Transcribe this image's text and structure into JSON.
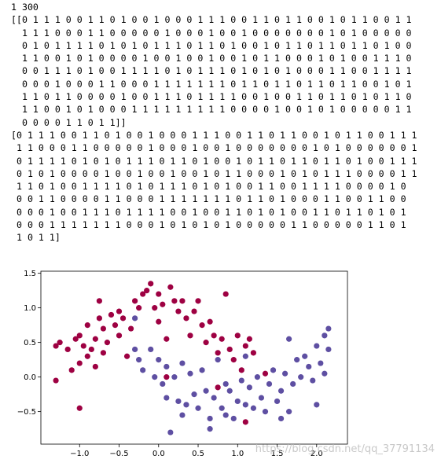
{
  "output_lines": [
    "1 300",
    "[[0 1 1 1 0 0 1 1 0 1 0 0 1 0 0 0 1 1 1 0 0 1 1 0 1 1 0 0 1 0 1 1 0 0 1 1",
    "  1 1 1 0 0 0 1 1 0 0 0 0 0 1 0 0 0 1 0 0 1 0 0 0 0 0 0 0 1 0 1 0 0 0 0 0",
    "  0 1 0 1 1 1 1 0 1 0 1 0 1 1 1 0 1 1 0 1 0 0 1 0 1 1 0 1 1 0 1 1 0 1 0 0",
    "  1 1 0 0 1 0 1 0 0 0 0 1 0 0 1 0 0 1 0 0 1 0 1 1 0 0 0 1 0 1 0 0 1 1 1 0",
    "  0 0 1 1 1 0 1 0 0 1 1 1 1 0 1 0 1 1 1 0 1 0 1 0 1 0 0 0 1 1 0 0 1 1 1 1",
    "  0 0 0 1 0 0 0 1 1 0 0 0 1 1 1 1 1 1 1 0 1 1 0 1 1 0 1 1 0 1 1 0 0 1 0 1",
    "  1 1 0 1 1 0 0 0 0 1 0 0 1 1 1 0 1 1 1 1 0 0 1 0 0 1 1 0 1 1 0 1 0 1 1 0",
    "  1 1 0 0 1 0 1 0 0 0 1 1 1 1 1 1 1 1 1 0 0 0 0 1 0 0 1 0 1 0 0 0 0 0 1 1",
    "  0 0 0 0 1 1 0 1 1]]",
    "[0 1 1 1 0 0 1 1 0 1 0 0 1 0 0 0 1 1 1 0 0 1 1 0 1 1 0 0 1 0 1 1 0 0 1 1 1",
    " 1 1 0 0 0 1 1 0 0 0 0 0 1 0 0 0 1 0 0 1 0 0 0 0 0 0 0 1 0 1 0 0 0 0 0 0 1",
    " 0 1 1 1 1 0 1 0 1 0 1 1 1 0 1 1 0 1 0 0 1 0 1 1 0 1 1 0 1 1 0 1 0 0 1 1 1",
    " 0 1 0 1 0 0 0 0 1 0 0 1 0 0 1 0 0 1 0 1 1 0 0 0 1 0 1 0 1 1 1 0 0 0 0 1 1",
    " 1 1 0 1 0 0 1 1 1 1 0 1 0 1 1 1 0 1 0 1 0 0 1 1 0 0 1 1 1 1 0 0 0 0 1 0",
    " 0 0 1 1 0 0 0 0 1 1 0 0 0 1 1 1 1 1 1 1 0 1 1 0 1 0 0 0 1 1 0 0 1 1 0 0",
    " 0 0 0 1 0 0 1 1 1 0 1 1 1 1 0 0 1 0 0 1 1 0 1 0 1 0 0 1 1 0 1 1 0 1 0 1",
    " 0 0 0 1 1 1 1 1 1 1 0 0 0 1 0 1 0 1 0 1 0 0 0 0 0 1 1 0 0 0 0 0 1 1 0 1",
    " 1 0 1 1]"
  ],
  "chart_data": {
    "type": "scatter",
    "xlim": [
      -1.49,
      2.39
    ],
    "ylim": [
      -0.97,
      1.53
    ],
    "xticks": [
      {
        "value": -1,
        "label": "−1.0"
      },
      {
        "value": -0.5,
        "label": "−0.5"
      },
      {
        "value": 0,
        "label": "0.0"
      },
      0.5,
      {
        "value": 1,
        "label": "1.0"
      },
      1.5,
      {
        "value": 2,
        "label": "2.0"
      }
    ],
    "yticks": [
      {
        "value": -0.5,
        "label": "−0.5"
      },
      {
        "value": 0,
        "label": "0.0"
      },
      0.5,
      {
        "value": 1,
        "label": "1.0"
      },
      1.5
    ],
    "series": [
      {
        "color": "#9e0142",
        "x": [
          -1.3,
          -1.3,
          -1.25,
          -1.15,
          -1.1,
          -1.05,
          -1.0,
          -1.0,
          -1.0,
          -0.95,
          -0.9,
          -0.9,
          -0.85,
          -0.8,
          -0.8,
          -0.75,
          -0.75,
          -0.7,
          -0.7,
          -0.65,
          -0.6,
          -0.55,
          -0.5,
          -0.5,
          -0.45,
          -0.4,
          -0.35,
          -0.3,
          -0.25,
          -0.2,
          -0.15,
          -0.1,
          -0.05,
          0.0,
          0.0,
          0.05,
          0.1,
          0.15,
          0.2,
          0.25,
          0.3,
          0.35,
          0.4,
          0.45,
          0.5,
          0.55,
          0.6,
          0.65,
          0.7,
          0.75,
          0.8,
          0.85,
          0.9,
          0.95,
          1.0,
          1.05,
          1.1,
          1.15,
          1.2,
          0.75,
          1.1,
          1.35,
          0.1
        ],
        "y": [
          0.45,
          -0.05,
          0.5,
          0.4,
          0.1,
          0.55,
          -0.45,
          0.6,
          0.2,
          0.45,
          0.75,
          0.3,
          0.4,
          0.15,
          0.55,
          1.1,
          0.85,
          0.7,
          0.35,
          0.5,
          0.9,
          0.75,
          0.6,
          0.95,
          0.85,
          0.3,
          0.7,
          1.1,
          1.0,
          1.2,
          1.25,
          1.35,
          1.0,
          1.2,
          0.8,
          1.05,
          0.55,
          1.3,
          1.1,
          0.95,
          1.1,
          0.85,
          0.6,
          0.95,
          1.1,
          0.75,
          0.5,
          0.8,
          0.6,
          0.35,
          0.55,
          1.2,
          0.4,
          0.25,
          0.6,
          0.1,
          0.45,
          0.55,
          0.35,
          -0.15,
          -0.65,
          0.05,
          0.0
        ]
      },
      {
        "color": "#5e4fa2",
        "x": [
          -0.3,
          -0.3,
          -0.25,
          -0.2,
          -0.1,
          -0.05,
          0.0,
          0.05,
          0.1,
          0.1,
          0.15,
          0.2,
          0.25,
          0.3,
          0.35,
          0.4,
          0.45,
          0.5,
          0.55,
          0.6,
          0.65,
          0.7,
          0.75,
          0.8,
          0.85,
          0.9,
          0.95,
          1.0,
          1.05,
          1.1,
          1.15,
          1.2,
          1.25,
          1.3,
          1.35,
          1.4,
          1.45,
          1.5,
          1.55,
          1.6,
          1.65,
          1.7,
          1.75,
          1.8,
          1.85,
          1.9,
          1.95,
          2.0,
          2.0,
          2.05,
          2.1,
          2.1,
          2.15,
          2.15,
          1.65,
          1.1,
          0.65,
          1.55,
          0.3,
          0.85
        ],
        "y": [
          0.85,
          0.4,
          0.25,
          0.1,
          0.4,
          0.0,
          0.25,
          -0.1,
          0.15,
          -0.3,
          -0.8,
          0.0,
          -0.35,
          0.2,
          -0.4,
          0.05,
          -0.25,
          -0.45,
          0.1,
          -0.2,
          -0.6,
          -0.3,
          0.25,
          -0.45,
          -0.55,
          -0.2,
          -0.6,
          -0.35,
          -0.05,
          -0.4,
          -0.15,
          -0.45,
          0.0,
          -0.3,
          -0.5,
          -0.1,
          0.1,
          -0.35,
          -0.2,
          0.05,
          -0.5,
          -0.1,
          0.25,
          0.0,
          0.3,
          0.15,
          -0.05,
          0.45,
          -0.4,
          0.2,
          0.6,
          0.05,
          0.7,
          0.4,
          0.55,
          0.3,
          -0.75,
          -0.6,
          -0.55,
          -0.1
        ]
      }
    ],
    "watermark": "https://blog.csdn.net/qq_37791134"
  }
}
